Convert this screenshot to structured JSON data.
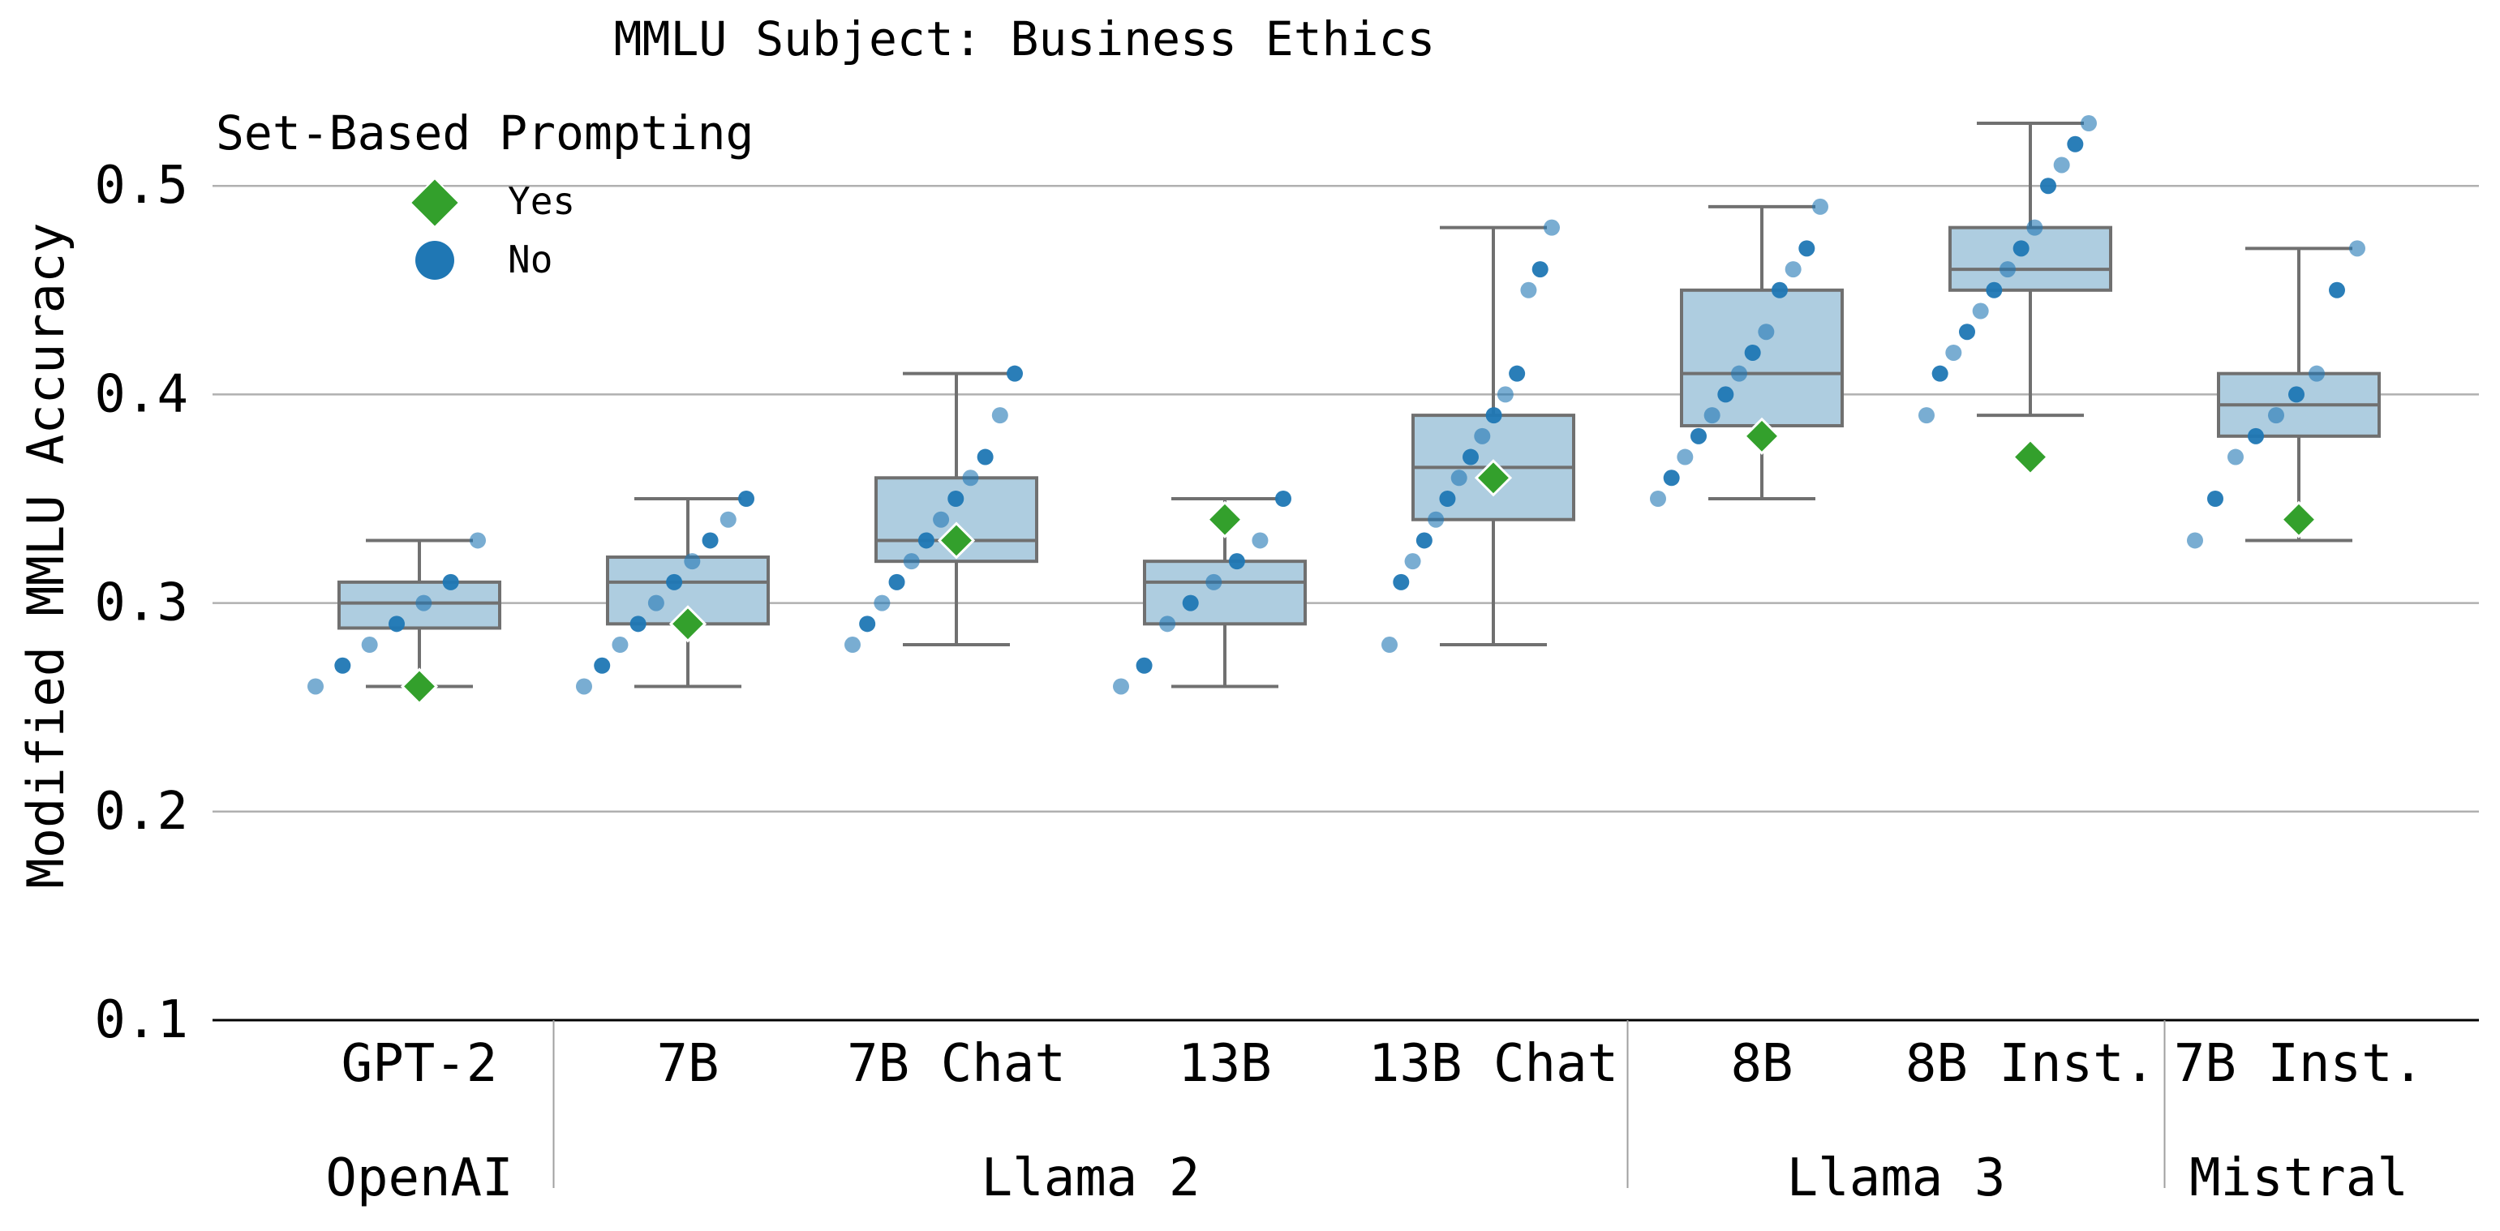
{
  "chart_data": {
    "type": "box",
    "title": "MMLU Subject: Business Ethics",
    "ylabel": "Modified MMLU Accuracy",
    "xlabel": "",
    "ylim": [
      0.1,
      0.55
    ],
    "yticks": [
      "0.1",
      "0.2",
      "0.3",
      "0.4",
      "0.5"
    ],
    "ytick_values": [
      0.1,
      0.2,
      0.3,
      0.4,
      0.5
    ],
    "grid": "horizontal",
    "colors": {
      "box": "#aecde0",
      "box_edge": "#707070",
      "dot": "#1f77b4",
      "yes_marker": "#33a02c",
      "grid": "#b0b0b0"
    },
    "legend": {
      "title": "Set-Based Prompting",
      "placement": "top-left",
      "items": [
        {
          "label": "Yes",
          "marker": "diamond",
          "color": "#33a02c"
        },
        {
          "label": "No",
          "marker": "circle",
          "color": "#1f77b4"
        }
      ]
    },
    "groups": [
      {
        "label": "OpenAI",
        "models": [
          "GPT-2"
        ]
      },
      {
        "label": "Llama 2",
        "models": [
          "7B",
          "7B Chat",
          "13B",
          "13B Chat"
        ]
      },
      {
        "label": "Llama 3",
        "models": [
          "8B",
          "8B Inst."
        ]
      },
      {
        "label": "Mistral",
        "models": [
          "7B Inst."
        ]
      }
    ],
    "categories": [
      "GPT-2",
      "7B",
      "7B Chat",
      "13B",
      "13B Chat",
      "8B",
      "8B Inst.",
      "7B Inst."
    ],
    "boxes": [
      {
        "whisker_low": 0.26,
        "q1": 0.288,
        "median": 0.3,
        "q3": 0.31,
        "whisker_high": 0.33
      },
      {
        "whisker_low": 0.26,
        "q1": 0.29,
        "median": 0.31,
        "q3": 0.322,
        "whisker_high": 0.35
      },
      {
        "whisker_low": 0.28,
        "q1": 0.32,
        "median": 0.33,
        "q3": 0.36,
        "whisker_high": 0.41
      },
      {
        "whisker_low": 0.26,
        "q1": 0.29,
        "median": 0.31,
        "q3": 0.32,
        "whisker_high": 0.35
      },
      {
        "whisker_low": 0.28,
        "q1": 0.34,
        "median": 0.365,
        "q3": 0.39,
        "whisker_high": 0.48
      },
      {
        "whisker_low": 0.35,
        "q1": 0.385,
        "median": 0.41,
        "q3": 0.45,
        "whisker_high": 0.49
      },
      {
        "whisker_low": 0.39,
        "q1": 0.45,
        "median": 0.46,
        "q3": 0.48,
        "whisker_high": 0.53
      },
      {
        "whisker_low": 0.33,
        "q1": 0.38,
        "median": 0.395,
        "q3": 0.41,
        "whisker_high": 0.47
      }
    ],
    "yes_values": [
      0.26,
      0.29,
      0.33,
      0.34,
      0.36,
      0.38,
      0.37,
      0.34
    ],
    "no_points": [
      [
        0.26,
        0.27,
        0.28,
        0.29,
        0.3,
        0.31,
        0.33
      ],
      [
        0.26,
        0.27,
        0.28,
        0.29,
        0.3,
        0.31,
        0.32,
        0.33,
        0.34,
        0.35
      ],
      [
        0.28,
        0.29,
        0.3,
        0.31,
        0.32,
        0.33,
        0.34,
        0.35,
        0.36,
        0.37,
        0.39,
        0.41
      ],
      [
        0.26,
        0.27,
        0.29,
        0.3,
        0.31,
        0.32,
        0.33,
        0.35
      ],
      [
        0.28,
        0.31,
        0.32,
        0.33,
        0.34,
        0.35,
        0.36,
        0.37,
        0.38,
        0.39,
        0.4,
        0.41,
        0.45,
        0.46,
        0.48
      ],
      [
        0.35,
        0.36,
        0.37,
        0.38,
        0.39,
        0.4,
        0.41,
        0.42,
        0.43,
        0.45,
        0.46,
        0.47,
        0.49
      ],
      [
        0.39,
        0.41,
        0.42,
        0.43,
        0.44,
        0.45,
        0.46,
        0.47,
        0.48,
        0.5,
        0.51,
        0.52,
        0.53
      ],
      [
        0.33,
        0.35,
        0.37,
        0.38,
        0.39,
        0.4,
        0.41,
        0.45,
        0.47
      ]
    ]
  }
}
